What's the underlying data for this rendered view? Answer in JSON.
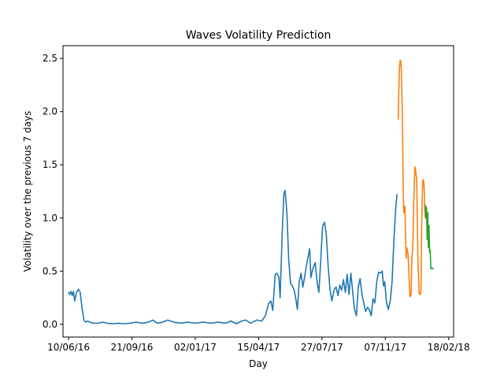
{
  "chart_data": {
    "type": "line",
    "title": "Waves Volatility Prediction",
    "xlabel": "Day",
    "ylabel": "Volatility over the previous 7 days",
    "xlim": [
      "2016-06-01",
      "2018-02-26"
    ],
    "ylim": [
      -0.12,
      2.62
    ],
    "x_ticks": [
      {
        "date": "2016-06-10",
        "label": "10/06/16"
      },
      {
        "date": "2016-09-21",
        "label": "21/09/16"
      },
      {
        "date": "2017-01-02",
        "label": "02/01/17"
      },
      {
        "date": "2017-04-15",
        "label": "15/04/17"
      },
      {
        "date": "2017-07-27",
        "label": "27/07/17"
      },
      {
        "date": "2017-11-07",
        "label": "07/11/17"
      },
      {
        "date": "2018-02-18",
        "label": "18/02/18"
      }
    ],
    "y_ticks": [
      {
        "value": 0.0,
        "label": "0.0"
      },
      {
        "value": 0.5,
        "label": "0.5"
      },
      {
        "value": 1.0,
        "label": "1.0"
      },
      {
        "value": 1.5,
        "label": "1.5"
      },
      {
        "value": 2.0,
        "label": "2.0"
      },
      {
        "value": 2.5,
        "label": "2.5"
      }
    ],
    "grid": false,
    "legend": "none",
    "series": [
      {
        "color": "#1f77b4",
        "points": [
          [
            "2016-06-10",
            0.3
          ],
          [
            "2016-06-12",
            0.28
          ],
          [
            "2016-06-14",
            0.31
          ],
          [
            "2016-06-16",
            0.27
          ],
          [
            "2016-06-18",
            0.31
          ],
          [
            "2016-06-20",
            0.22
          ],
          [
            "2016-06-23",
            0.3
          ],
          [
            "2016-06-26",
            0.33
          ],
          [
            "2016-06-29",
            0.3
          ],
          [
            "2016-07-02",
            0.15
          ],
          [
            "2016-07-05",
            0.04
          ],
          [
            "2016-07-08",
            0.02
          ],
          [
            "2016-07-11",
            0.03
          ],
          [
            "2016-07-15",
            0.02
          ],
          [
            "2016-07-20",
            0.01
          ],
          [
            "2016-07-28",
            0.01
          ],
          [
            "2016-08-05",
            0.02
          ],
          [
            "2016-08-12",
            0.01
          ],
          [
            "2016-08-20",
            0.005
          ],
          [
            "2016-08-30",
            0.01
          ],
          [
            "2016-09-08",
            0.005
          ],
          [
            "2016-09-18",
            0.01
          ],
          [
            "2016-09-28",
            0.02
          ],
          [
            "2016-10-08",
            0.01
          ],
          [
            "2016-10-18",
            0.02
          ],
          [
            "2016-10-25",
            0.04
          ],
          [
            "2016-11-01",
            0.01
          ],
          [
            "2016-11-10",
            0.02
          ],
          [
            "2016-11-18",
            0.04
          ],
          [
            "2016-11-28",
            0.02
          ],
          [
            "2016-12-10",
            0.01
          ],
          [
            "2016-12-20",
            0.02
          ],
          [
            "2017-01-02",
            0.01
          ],
          [
            "2017-01-15",
            0.02
          ],
          [
            "2017-01-28",
            0.01
          ],
          [
            "2017-02-08",
            0.02
          ],
          [
            "2017-02-20",
            0.01
          ],
          [
            "2017-03-01",
            0.03
          ],
          [
            "2017-03-10",
            0.005
          ],
          [
            "2017-03-18",
            0.03
          ],
          [
            "2017-03-25",
            0.04
          ],
          [
            "2017-04-02",
            0.01
          ],
          [
            "2017-04-12",
            0.04
          ],
          [
            "2017-04-20",
            0.03
          ],
          [
            "2017-04-26",
            0.08
          ],
          [
            "2017-05-01",
            0.19
          ],
          [
            "2017-05-05",
            0.22
          ],
          [
            "2017-05-08",
            0.13
          ],
          [
            "2017-05-12",
            0.47
          ],
          [
            "2017-05-15",
            0.48
          ],
          [
            "2017-05-18",
            0.44
          ],
          [
            "2017-05-20",
            0.25
          ],
          [
            "2017-05-23",
            0.8
          ],
          [
            "2017-05-26",
            1.22
          ],
          [
            "2017-05-28",
            1.26
          ],
          [
            "2017-05-31",
            1.05
          ],
          [
            "2017-06-03",
            0.6
          ],
          [
            "2017-06-06",
            0.38
          ],
          [
            "2017-06-09",
            0.36
          ],
          [
            "2017-06-12",
            0.32
          ],
          [
            "2017-06-15",
            0.22
          ],
          [
            "2017-06-17",
            0.14
          ],
          [
            "2017-06-20",
            0.4
          ],
          [
            "2017-06-23",
            0.48
          ],
          [
            "2017-06-26",
            0.35
          ],
          [
            "2017-06-29",
            0.45
          ],
          [
            "2017-07-02",
            0.56
          ],
          [
            "2017-07-05",
            0.65
          ],
          [
            "2017-07-07",
            0.71
          ],
          [
            "2017-07-09",
            0.44
          ],
          [
            "2017-07-12",
            0.52
          ],
          [
            "2017-07-16",
            0.58
          ],
          [
            "2017-07-19",
            0.4
          ],
          [
            "2017-07-22",
            0.3
          ],
          [
            "2017-07-25",
            0.6
          ],
          [
            "2017-07-28",
            0.92
          ],
          [
            "2017-07-31",
            0.96
          ],
          [
            "2017-08-03",
            0.85
          ],
          [
            "2017-08-06",
            0.55
          ],
          [
            "2017-08-09",
            0.33
          ],
          [
            "2017-08-12",
            0.22
          ],
          [
            "2017-08-16",
            0.33
          ],
          [
            "2017-08-19",
            0.35
          ],
          [
            "2017-08-22",
            0.27
          ],
          [
            "2017-08-25",
            0.37
          ],
          [
            "2017-08-28",
            0.32
          ],
          [
            "2017-08-31",
            0.42
          ],
          [
            "2017-09-03",
            0.3
          ],
          [
            "2017-09-06",
            0.47
          ],
          [
            "2017-09-09",
            0.28
          ],
          [
            "2017-09-12",
            0.48
          ],
          [
            "2017-09-15",
            0.3
          ],
          [
            "2017-09-18",
            0.14
          ],
          [
            "2017-09-21",
            0.08
          ],
          [
            "2017-09-24",
            0.35
          ],
          [
            "2017-09-27",
            0.43
          ],
          [
            "2017-09-30",
            0.28
          ],
          [
            "2017-10-03",
            0.2
          ],
          [
            "2017-10-06",
            0.12
          ],
          [
            "2017-10-09",
            0.16
          ],
          [
            "2017-10-12",
            0.14
          ],
          [
            "2017-10-15",
            0.08
          ],
          [
            "2017-10-18",
            0.24
          ],
          [
            "2017-10-21",
            0.2
          ],
          [
            "2017-10-24",
            0.4
          ],
          [
            "2017-10-27",
            0.49
          ],
          [
            "2017-10-30",
            0.48
          ],
          [
            "2017-11-02",
            0.5
          ],
          [
            "2017-11-04",
            0.36
          ],
          [
            "2017-11-06",
            0.4
          ],
          [
            "2017-11-09",
            0.2
          ],
          [
            "2017-11-12",
            0.14
          ],
          [
            "2017-11-15",
            0.22
          ],
          [
            "2017-11-18",
            0.4
          ],
          [
            "2017-11-21",
            0.8
          ],
          [
            "2017-11-24",
            1.1
          ],
          [
            "2017-11-26",
            1.22
          ]
        ]
      },
      {
        "color": "#ff7f0e",
        "points": [
          [
            "2017-11-28",
            1.93
          ],
          [
            "2017-11-29",
            2.2
          ],
          [
            "2017-11-30",
            2.42
          ],
          [
            "2017-12-01",
            2.48
          ],
          [
            "2017-12-02",
            2.48
          ],
          [
            "2017-12-03",
            2.4
          ],
          [
            "2017-12-05",
            1.9
          ],
          [
            "2017-12-06",
            1.3
          ],
          [
            "2017-12-07",
            1.05
          ],
          [
            "2017-12-08",
            1.11
          ],
          [
            "2017-12-09",
            1.1
          ],
          [
            "2017-12-10",
            0.8
          ],
          [
            "2017-12-11",
            0.62
          ],
          [
            "2017-12-12",
            0.72
          ],
          [
            "2017-12-13",
            0.69
          ],
          [
            "2017-12-14",
            0.66
          ],
          [
            "2017-12-16",
            0.4
          ],
          [
            "2017-12-17",
            0.26
          ],
          [
            "2017-12-19",
            0.28
          ],
          [
            "2017-12-20",
            0.6
          ],
          [
            "2017-12-22",
            0.78
          ],
          [
            "2017-12-23",
            1.1
          ],
          [
            "2017-12-25",
            1.48
          ],
          [
            "2017-12-26",
            1.46
          ],
          [
            "2017-12-27",
            1.4
          ],
          [
            "2017-12-28",
            1.38
          ],
          [
            "2017-12-30",
            0.6
          ],
          [
            "2018-01-01",
            0.29
          ],
          [
            "2018-01-03",
            0.28
          ],
          [
            "2018-01-04",
            0.32
          ],
          [
            "2018-01-05",
            0.9
          ],
          [
            "2018-01-06",
            1.2
          ],
          [
            "2018-01-07",
            1.35
          ],
          [
            "2018-01-08",
            1.36
          ],
          [
            "2018-01-09",
            1.3
          ],
          [
            "2018-01-10",
            1.1
          ],
          [
            "2018-01-11",
            1.0
          ]
        ]
      },
      {
        "color": "#2ca02c",
        "points": [
          [
            "2018-01-11",
            1.12
          ],
          [
            "2018-01-12",
            1.0
          ],
          [
            "2018-01-13",
            1.1
          ],
          [
            "2018-01-14",
            0.8
          ],
          [
            "2018-01-15",
            1.05
          ],
          [
            "2018-01-16",
            0.72
          ],
          [
            "2018-01-17",
            0.93
          ],
          [
            "2018-01-18",
            0.68
          ],
          [
            "2018-01-19",
            0.7
          ],
          [
            "2018-01-20",
            0.52
          ],
          [
            "2018-01-22",
            0.53
          ],
          [
            "2018-01-24",
            0.52
          ]
        ]
      }
    ]
  }
}
